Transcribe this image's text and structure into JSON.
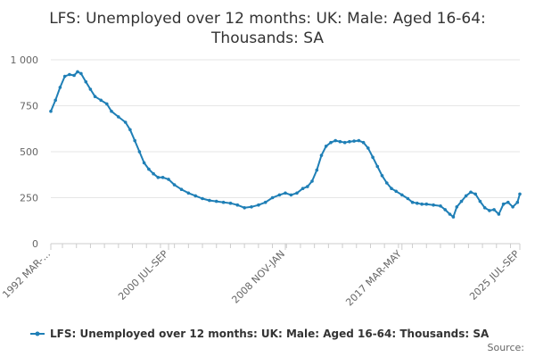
{
  "chart_data": {
    "type": "line",
    "title_lines": [
      "LFS: Unemployed over 12 months: UK: Male: Aged 16-64:",
      "Thousands: SA"
    ],
    "x_tick_labels": [
      "1992 MAR-...",
      "2000 JUL-SEP",
      "2008 NOV-JAN",
      "2017 MAR-MAY",
      "2025 JUL-SEP"
    ],
    "x_tick_positions": [
      1992.17,
      2000.58,
      2008.92,
      2017.25,
      2025.67
    ],
    "x_range": [
      1992.17,
      2025.67
    ],
    "y_range": [
      0,
      1000
    ],
    "y_ticks": [
      0,
      250,
      500,
      750,
      1000
    ],
    "y_tick_labels": [
      "0",
      "250",
      "500",
      "750",
      "1 000"
    ],
    "grid": true,
    "legend_position": "bottom",
    "series": [
      {
        "name": "LFS: Unemployed over 12 months: UK: Male: Aged 16-64: Thousands: SA",
        "color": "#1f7fb6",
        "points": [
          [
            1992.17,
            720
          ],
          [
            1992.5,
            780
          ],
          [
            1992.83,
            850
          ],
          [
            1993.17,
            910
          ],
          [
            1993.5,
            920
          ],
          [
            1993.83,
            915
          ],
          [
            1994.08,
            935
          ],
          [
            1994.33,
            925
          ],
          [
            1994.67,
            880
          ],
          [
            1995.0,
            840
          ],
          [
            1995.33,
            800
          ],
          [
            1995.75,
            780
          ],
          [
            1996.17,
            760
          ],
          [
            1996.5,
            720
          ],
          [
            1997.0,
            690
          ],
          [
            1997.5,
            660
          ],
          [
            1997.83,
            620
          ],
          [
            1998.17,
            560
          ],
          [
            1998.5,
            500
          ],
          [
            1998.83,
            440
          ],
          [
            1999.17,
            405
          ],
          [
            1999.5,
            380
          ],
          [
            1999.83,
            360
          ],
          [
            2000.17,
            360
          ],
          [
            2000.58,
            350
          ],
          [
            2001.0,
            320
          ],
          [
            2001.5,
            295
          ],
          [
            2002.0,
            275
          ],
          [
            2002.5,
            260
          ],
          [
            2003.0,
            245
          ],
          [
            2003.5,
            235
          ],
          [
            2004.0,
            230
          ],
          [
            2004.5,
            225
          ],
          [
            2005.0,
            220
          ],
          [
            2005.5,
            210
          ],
          [
            2006.0,
            195
          ],
          [
            2006.5,
            200
          ],
          [
            2007.0,
            210
          ],
          [
            2007.5,
            225
          ],
          [
            2008.0,
            250
          ],
          [
            2008.5,
            265
          ],
          [
            2008.92,
            275
          ],
          [
            2009.33,
            265
          ],
          [
            2009.75,
            275
          ],
          [
            2010.17,
            300
          ],
          [
            2010.5,
            310
          ],
          [
            2010.83,
            340
          ],
          [
            2011.17,
            400
          ],
          [
            2011.5,
            480
          ],
          [
            2011.83,
            530
          ],
          [
            2012.17,
            550
          ],
          [
            2012.5,
            560
          ],
          [
            2012.83,
            555
          ],
          [
            2013.17,
            550
          ],
          [
            2013.5,
            555
          ],
          [
            2013.83,
            558
          ],
          [
            2014.17,
            560
          ],
          [
            2014.5,
            550
          ],
          [
            2014.83,
            520
          ],
          [
            2015.17,
            470
          ],
          [
            2015.5,
            420
          ],
          [
            2015.83,
            370
          ],
          [
            2016.17,
            330
          ],
          [
            2016.5,
            300
          ],
          [
            2016.83,
            285
          ],
          [
            2017.25,
            265
          ],
          [
            2017.67,
            245
          ],
          [
            2018.0,
            225
          ],
          [
            2018.33,
            220
          ],
          [
            2018.67,
            215
          ],
          [
            2019.0,
            215
          ],
          [
            2019.5,
            210
          ],
          [
            2020.0,
            205
          ],
          [
            2020.33,
            185
          ],
          [
            2020.67,
            160
          ],
          [
            2020.92,
            145
          ],
          [
            2021.17,
            200
          ],
          [
            2021.5,
            230
          ],
          [
            2021.83,
            260
          ],
          [
            2022.17,
            280
          ],
          [
            2022.5,
            270
          ],
          [
            2022.83,
            230
          ],
          [
            2023.17,
            195
          ],
          [
            2023.5,
            180
          ],
          [
            2023.83,
            185
          ],
          [
            2024.17,
            160
          ],
          [
            2024.5,
            215
          ],
          [
            2024.83,
            225
          ],
          [
            2025.17,
            200
          ],
          [
            2025.5,
            225
          ],
          [
            2025.67,
            270
          ]
        ]
      }
    ]
  },
  "legend": {
    "label": "LFS: Unemployed over 12 months: UK: Male: Aged 16-64: Thousands: SA"
  },
  "source_label": "Source:"
}
